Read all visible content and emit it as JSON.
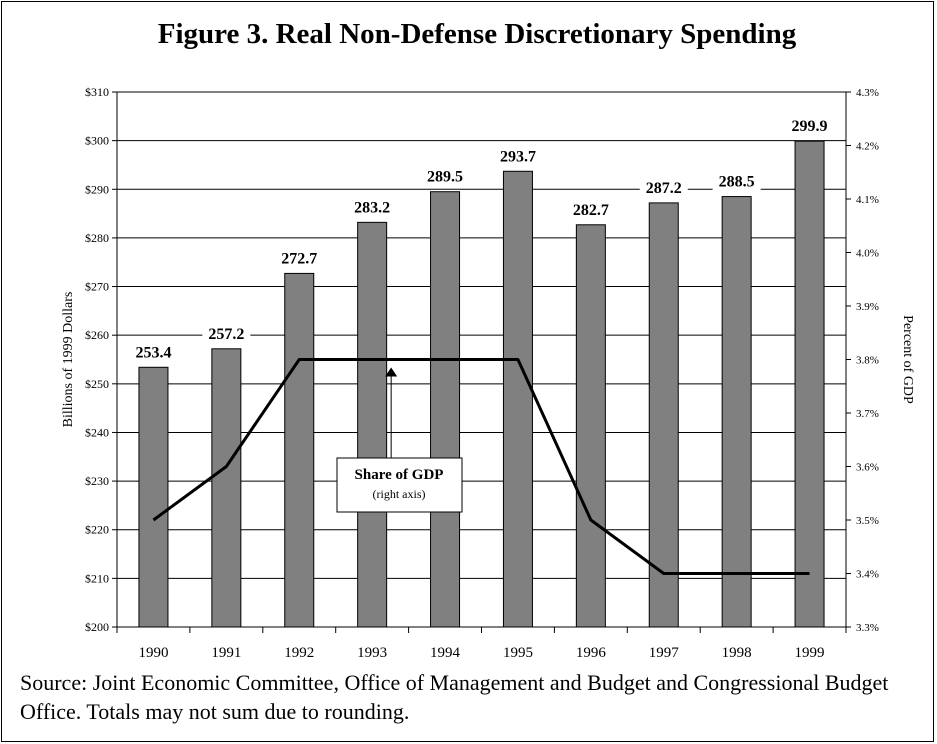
{
  "chart_data": {
    "type": "bar",
    "title": "Figure 3.  Real Non-Defense Discretionary Spending",
    "ylabel": "Billions of 1999 Dollars",
    "y2label": "Percent of GDP",
    "categories": [
      "1990",
      "1991",
      "1992",
      "1993",
      "1994",
      "1995",
      "1996",
      "1997",
      "1998",
      "1999"
    ],
    "series": [
      {
        "values": [
          253.4,
          257.2,
          272.7,
          283.2,
          289.5,
          293.7,
          282.7,
          287.2,
          288.5,
          299.9
        ],
        "axis": "left",
        "kind": "bar",
        "color": "#808080"
      },
      {
        "values": [
          3.5,
          3.6,
          3.8,
          3.8,
          3.8,
          3.8,
          3.5,
          3.4,
          3.4,
          3.4
        ],
        "axis": "right",
        "kind": "line",
        "color": "#000000"
      }
    ],
    "bar_labels": [
      "253.4",
      "257.2",
      "272.7",
      "283.2",
      "289.5",
      "293.7",
      "282.7",
      "287.2",
      "288.5",
      "299.9"
    ],
    "ylim": [
      200,
      310
    ],
    "y_ticks": [
      "$200",
      "$210",
      "$220",
      "$230",
      "$240",
      "$250",
      "$260",
      "$270",
      "$280",
      "$290",
      "$300",
      "$310"
    ],
    "y2lim": [
      3.3,
      4.3
    ],
    "y2_ticks": [
      "3.3%",
      "3.4%",
      "3.5%",
      "3.6%",
      "3.7%",
      "3.8%",
      "3.9%",
      "4.0%",
      "4.1%",
      "4.2%",
      "4.3%"
    ],
    "grid": "horizontal",
    "annotation": {
      "title": "Share of GDP",
      "subtitle": "(right axis)",
      "points_to_category": "1993"
    }
  },
  "source_text": "Source:  Joint Economic Committee, Office of Management and Budget and Congressional Budget Office. Totals may not sum due to rounding."
}
